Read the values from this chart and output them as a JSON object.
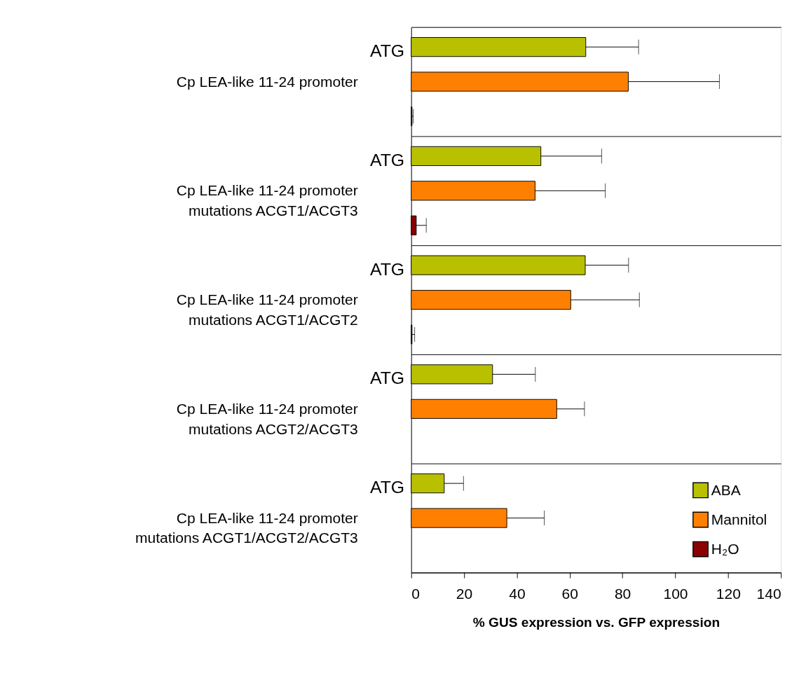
{
  "chart_data": {
    "type": "bar",
    "orientation": "horizontal",
    "xlabel": "% GUS expression vs. GFP expression",
    "categories": [
      "Cp LEA-like 11-24 promoter",
      "Cp LEA-like 11-24 promoter\nmutations ACGT1/ACGT3",
      "Cp LEA-like 11-24 promoter\nmutations ACGT1/ACGT2",
      "Cp LEA-like 11-24 promoter\nmutations ACGT2/ACGT3",
      "Cp LEA-like 11-24 promoter\nmutations ACGT1/ACGT2/ACGT3"
    ],
    "series": [
      {
        "name": "ABA",
        "color": "#b8c000",
        "values": [
          66.1,
          49.1,
          65.9,
          30.8,
          12.5
        ],
        "errors": [
          20,
          23,
          16.4,
          16.2,
          7.3
        ]
      },
      {
        "name": "Mannitol",
        "color": "#ff8000",
        "values": [
          82.2,
          46.9,
          60.4,
          55.1,
          36.2
        ],
        "errors": [
          34.5,
          26.6,
          26,
          10.5,
          14.2
        ]
      },
      {
        "name": "H₂O",
        "color": "#8b0000",
        "values": [
          0.3,
          1.9,
          0.3,
          null,
          null
        ],
        "errors": [
          0.5,
          3.8,
          1,
          null,
          null
        ]
      }
    ],
    "xlim": [
      0,
      140
    ],
    "xticks": [
      0,
      20,
      40,
      60,
      80,
      100,
      120,
      140
    ],
    "grid": "y",
    "legend": "bottom right",
    "annotations": [
      "ATG",
      "ATG",
      "ATG",
      "ATG",
      "ATG"
    ]
  }
}
